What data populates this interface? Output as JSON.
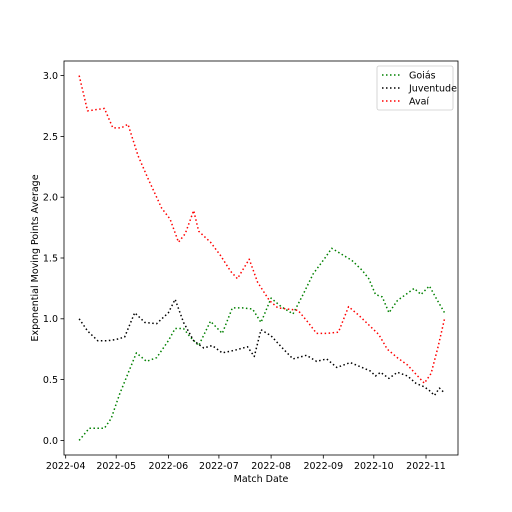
{
  "chart_data": {
    "type": "line",
    "title": "",
    "xlabel": "Match Date",
    "ylabel": "Exponential Moving Points Average",
    "xlim": [
      "2022-03-31",
      "2022-11-20"
    ],
    "ylim": [
      -0.12,
      3.12
    ],
    "x_ticks": [
      "2022-04",
      "2022-05",
      "2022-06",
      "2022-07",
      "2022-08",
      "2022-09",
      "2022-10",
      "2022-11"
    ],
    "x_tick_dates": [
      "2022-04-01",
      "2022-05-01",
      "2022-06-01",
      "2022-07-01",
      "2022-08-01",
      "2022-09-01",
      "2022-10-01",
      "2022-11-01"
    ],
    "y_ticks": [
      "0.0",
      "0.5",
      "1.0",
      "1.5",
      "2.0",
      "2.5",
      "3.0"
    ],
    "y_tick_values": [
      0,
      0.5,
      1.0,
      1.5,
      2.0,
      2.5,
      3.0
    ],
    "grid": false,
    "legend_position": "top-right",
    "line_style": "dotted",
    "series": [
      {
        "name": "Goiás",
        "color": "#008000",
        "points": [
          [
            "2022-04-09",
            0.0
          ],
          [
            "2022-04-15",
            0.1
          ],
          [
            "2022-04-20",
            0.1
          ],
          [
            "2022-04-24",
            0.1
          ],
          [
            "2022-04-28",
            0.18
          ],
          [
            "2022-05-03",
            0.38
          ],
          [
            "2022-05-08",
            0.55
          ],
          [
            "2022-05-13",
            0.72
          ],
          [
            "2022-05-19",
            0.65
          ],
          [
            "2022-05-25",
            0.68
          ],
          [
            "2022-06-01",
            0.82
          ],
          [
            "2022-06-05",
            0.92
          ],
          [
            "2022-06-10",
            0.92
          ],
          [
            "2022-06-14",
            0.85
          ],
          [
            "2022-06-19",
            0.78
          ],
          [
            "2022-06-26",
            0.98
          ],
          [
            "2022-07-03",
            0.88
          ],
          [
            "2022-07-09",
            1.09
          ],
          [
            "2022-07-15",
            1.09
          ],
          [
            "2022-07-21",
            1.08
          ],
          [
            "2022-07-26",
            0.97
          ],
          [
            "2022-08-01",
            1.17
          ],
          [
            "2022-08-07",
            1.1
          ],
          [
            "2022-08-14",
            1.04
          ],
          [
            "2022-08-20",
            1.2
          ],
          [
            "2022-08-26",
            1.37
          ],
          [
            "2022-09-02",
            1.5
          ],
          [
            "2022-09-06",
            1.58
          ],
          [
            "2022-09-12",
            1.53
          ],
          [
            "2022-09-18",
            1.48
          ],
          [
            "2022-09-24",
            1.4
          ],
          [
            "2022-09-28",
            1.33
          ],
          [
            "2022-10-02",
            1.2
          ],
          [
            "2022-10-06",
            1.18
          ],
          [
            "2022-10-10",
            1.05
          ],
          [
            "2022-10-15",
            1.15
          ],
          [
            "2022-10-20",
            1.2
          ],
          [
            "2022-10-25",
            1.25
          ],
          [
            "2022-10-29",
            1.2
          ],
          [
            "2022-11-03",
            1.27
          ],
          [
            "2022-11-07",
            1.17
          ],
          [
            "2022-11-12",
            1.05
          ]
        ]
      },
      {
        "name": "Juventude",
        "color": "#000000",
        "points": [
          [
            "2022-04-09",
            1.0
          ],
          [
            "2022-04-14",
            0.9
          ],
          [
            "2022-04-20",
            0.82
          ],
          [
            "2022-04-26",
            0.82
          ],
          [
            "2022-05-01",
            0.83
          ],
          [
            "2022-05-06",
            0.85
          ],
          [
            "2022-05-12",
            1.05
          ],
          [
            "2022-05-18",
            0.97
          ],
          [
            "2022-05-25",
            0.96
          ],
          [
            "2022-06-01",
            1.05
          ],
          [
            "2022-06-05",
            1.16
          ],
          [
            "2022-06-10",
            0.97
          ],
          [
            "2022-06-16",
            0.82
          ],
          [
            "2022-06-22",
            0.76
          ],
          [
            "2022-06-27",
            0.78
          ],
          [
            "2022-07-03",
            0.72
          ],
          [
            "2022-07-10",
            0.74
          ],
          [
            "2022-07-18",
            0.77
          ],
          [
            "2022-07-22",
            0.69
          ],
          [
            "2022-07-26",
            0.91
          ],
          [
            "2022-08-01",
            0.86
          ],
          [
            "2022-08-07",
            0.77
          ],
          [
            "2022-08-14",
            0.67
          ],
          [
            "2022-08-22",
            0.7
          ],
          [
            "2022-08-28",
            0.65
          ],
          [
            "2022-09-03",
            0.67
          ],
          [
            "2022-09-09",
            0.6
          ],
          [
            "2022-09-17",
            0.64
          ],
          [
            "2022-09-24",
            0.6
          ],
          [
            "2022-09-29",
            0.57
          ],
          [
            "2022-10-02",
            0.53
          ],
          [
            "2022-10-05",
            0.56
          ],
          [
            "2022-10-10",
            0.51
          ],
          [
            "2022-10-15",
            0.56
          ],
          [
            "2022-10-21",
            0.53
          ],
          [
            "2022-10-26",
            0.47
          ],
          [
            "2022-10-31",
            0.44
          ],
          [
            "2022-11-03",
            0.41
          ],
          [
            "2022-11-06",
            0.37
          ],
          [
            "2022-11-09",
            0.43
          ],
          [
            "2022-11-12",
            0.39
          ]
        ]
      },
      {
        "name": "Avaí",
        "color": "#ff0000",
        "points": [
          [
            "2022-04-09",
            3.0
          ],
          [
            "2022-04-14",
            2.71
          ],
          [
            "2022-04-19",
            2.72
          ],
          [
            "2022-04-24",
            2.73
          ],
          [
            "2022-04-29",
            2.57
          ],
          [
            "2022-05-04",
            2.57
          ],
          [
            "2022-05-08",
            2.6
          ],
          [
            "2022-05-14",
            2.34
          ],
          [
            "2022-05-20",
            2.15
          ],
          [
            "2022-05-28",
            1.91
          ],
          [
            "2022-06-02",
            1.82
          ],
          [
            "2022-06-07",
            1.63
          ],
          [
            "2022-06-11",
            1.7
          ],
          [
            "2022-06-16",
            1.89
          ],
          [
            "2022-06-19",
            1.72
          ],
          [
            "2022-06-26",
            1.63
          ],
          [
            "2022-07-02",
            1.52
          ],
          [
            "2022-07-08",
            1.39
          ],
          [
            "2022-07-12",
            1.33
          ],
          [
            "2022-07-19",
            1.49
          ],
          [
            "2022-07-24",
            1.3
          ],
          [
            "2022-07-31",
            1.15
          ],
          [
            "2022-08-05",
            1.09
          ],
          [
            "2022-08-11",
            1.08
          ],
          [
            "2022-08-17",
            1.07
          ],
          [
            "2022-08-23",
            0.97
          ],
          [
            "2022-08-28",
            0.88
          ],
          [
            "2022-09-03",
            0.88
          ],
          [
            "2022-09-10",
            0.89
          ],
          [
            "2022-09-16",
            1.1
          ],
          [
            "2022-09-22",
            1.03
          ],
          [
            "2022-09-28",
            0.95
          ],
          [
            "2022-10-04",
            0.87
          ],
          [
            "2022-10-09",
            0.75
          ],
          [
            "2022-10-15",
            0.68
          ],
          [
            "2022-10-21",
            0.62
          ],
          [
            "2022-10-27",
            0.53
          ],
          [
            "2022-10-31",
            0.47
          ],
          [
            "2022-11-04",
            0.55
          ],
          [
            "2022-11-08",
            0.76
          ],
          [
            "2022-11-12",
            1.0
          ]
        ]
      }
    ]
  }
}
